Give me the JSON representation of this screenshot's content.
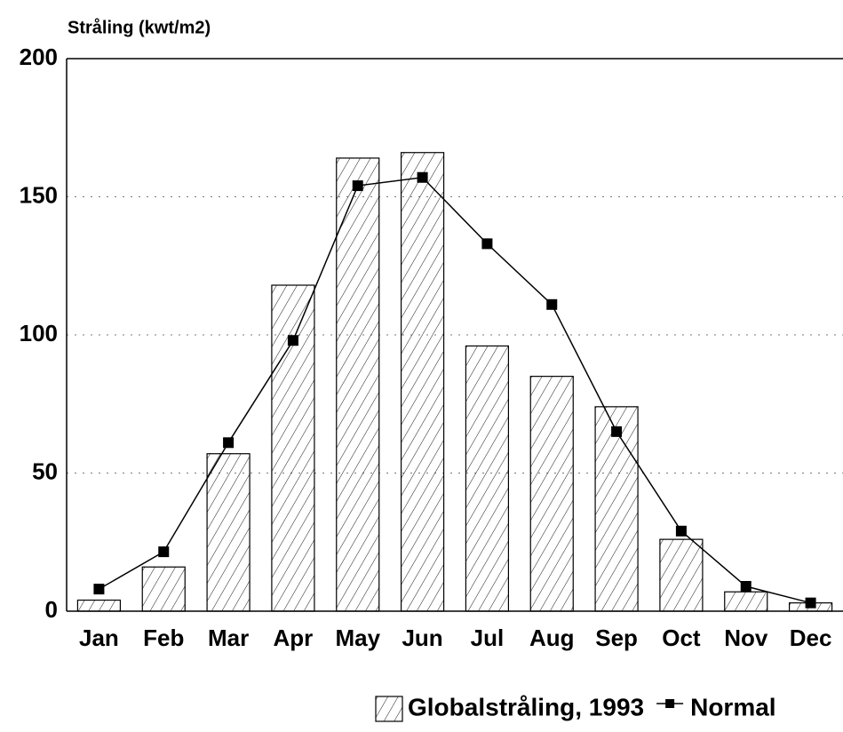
{
  "chart_data": {
    "type": "bar_line",
    "y_label": "Stråling (kwt/m2)",
    "categories": [
      "Jan",
      "Feb",
      "Mar",
      "Apr",
      "May",
      "Jun",
      "Jul",
      "Aug",
      "Sep",
      "Oct",
      "Nov",
      "Dec"
    ],
    "series": [
      {
        "name": "Globalstråling, 1993",
        "type": "bar",
        "color": "#000000",
        "values": [
          4,
          16,
          57,
          118,
          164,
          166,
          96,
          85,
          74,
          26,
          7,
          3
        ]
      },
      {
        "name": "Normal",
        "type": "line",
        "color": "#000000",
        "values": [
          8,
          21.5,
          61,
          98,
          154,
          157,
          133,
          111,
          65,
          29,
          9,
          3
        ]
      }
    ],
    "ylim": [
      0,
      200
    ],
    "yticks": [
      0,
      50,
      100,
      150,
      200
    ],
    "grid": true
  }
}
